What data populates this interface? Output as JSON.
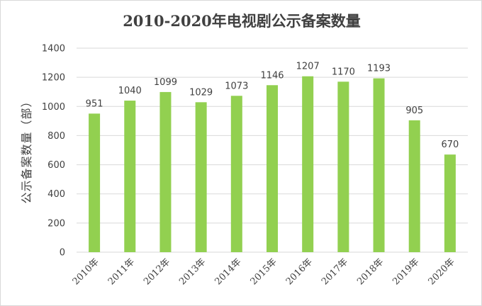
{
  "chart_data": {
    "type": "bar",
    "title": "2010-2020年电视剧公示备案数量",
    "ylabel": "公示备案数量（部）",
    "xlabel": "",
    "categories": [
      "2010年",
      "2011年",
      "2012年",
      "2013年",
      "2014年",
      "2015年",
      "2016年",
      "2017年",
      "2018年",
      "2019年",
      "2020年"
    ],
    "values": [
      951,
      1040,
      1099,
      1029,
      1073,
      1146,
      1207,
      1170,
      1193,
      905,
      670
    ],
    "ylim": [
      0,
      1400
    ],
    "yticks": [
      0,
      200,
      400,
      600,
      800,
      1000,
      1200,
      1400
    ],
    "bar_color": "#92d050",
    "grid": true,
    "legend": "none"
  }
}
